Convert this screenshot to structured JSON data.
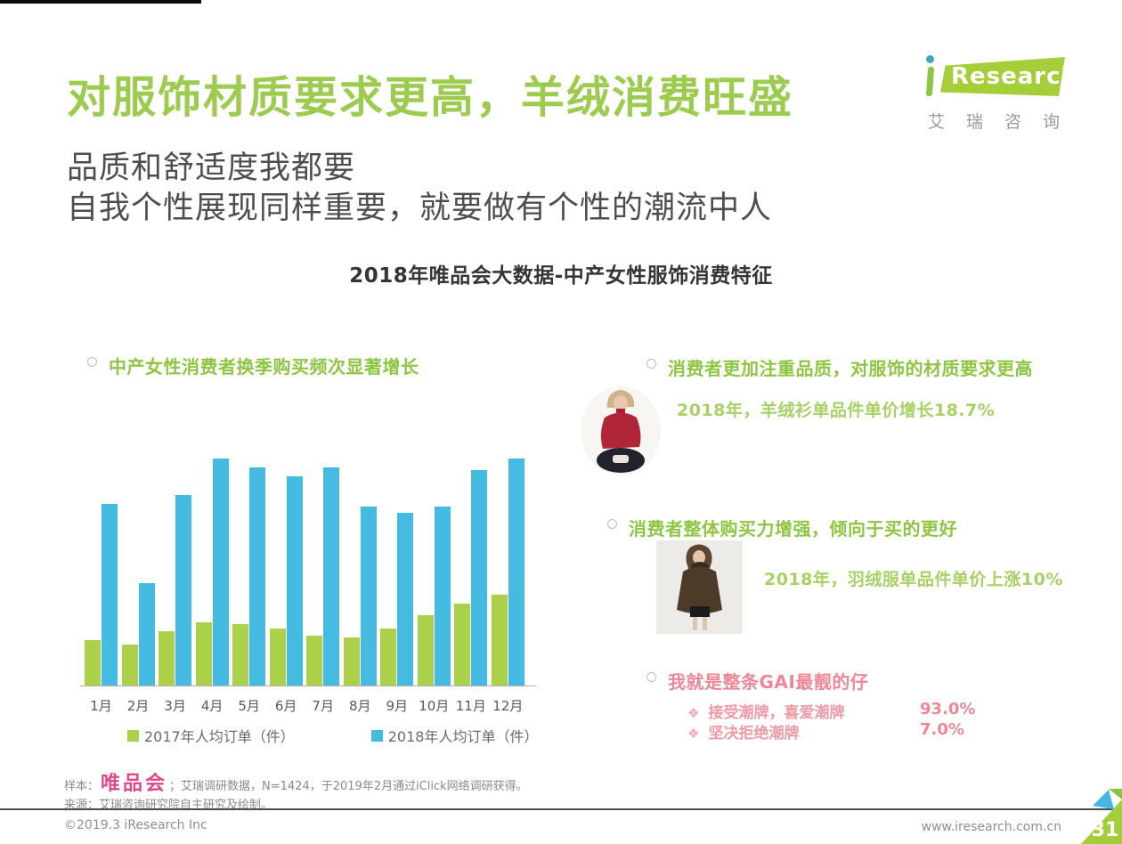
{
  "header": {
    "title": "对服饰材质要求更高，羊绒消费旺盛",
    "subtitle_line1": "品质和舒适度我都要",
    "subtitle_line2": "自我个性展现同样重要，就要做有个性的潮流中人"
  },
  "logo": {
    "monogram": "i",
    "wordmark": "Research",
    "caption": "艾瑞咨询"
  },
  "section_title": "2018年唯品会大数据-中产女性服饰消费特征",
  "chart_data": {
    "type": "bar",
    "title": "中产女性消费者换季购买频次显著增长",
    "categories": [
      "1月",
      "2月",
      "3月",
      "4月",
      "5月",
      "6月",
      "7月",
      "8月",
      "9月",
      "10月",
      "11月",
      "12月"
    ],
    "series": [
      {
        "name": "2017年人均订单（件）",
        "color": "#abd04a",
        "values": [
          20,
          18,
          24,
          28,
          27,
          25,
          22,
          21,
          25,
          31,
          36,
          40
        ]
      },
      {
        "name": "2018年人均订单（件）",
        "color": "#45bbe2",
        "values": [
          80,
          45,
          84,
          100,
          96,
          92,
          96,
          79,
          76,
          79,
          95,
          100
        ]
      }
    ],
    "xlabel": "",
    "ylabel": "",
    "ylim": [
      0,
      100
    ],
    "units": "relative bar height (no numeric axis shown)",
    "grid": false,
    "legend_position": "bottom"
  },
  "insights": {
    "quality": {
      "heading": "消费者更加注重品质，对服饰的材质要求更高",
      "detail": "2018年，羊绒衫单品件单价增长18.7%",
      "image": "woman-in-red-cashmere-sweater"
    },
    "spending": {
      "heading": "消费者整体购买力增强，倾向于买的更好",
      "detail": "2018年，羽绒服单品件单价上涨10%",
      "image": "woman-in-down-fur-coat"
    },
    "trend": {
      "heading": "我就是整条GAI最靓的仔",
      "bullet_char": "❖",
      "items": [
        {
          "label": "接受潮牌，喜爱潮牌",
          "value": "93.0%"
        },
        {
          "label": "坚决拒绝潮牌",
          "value": "7.0%"
        }
      ]
    }
  },
  "footer": {
    "sample_prefix": "样本：",
    "sample_brand": "唯品会",
    "sample_text": "；艾瑞调研数据，N=1424，于2019年2月通过iClick网络调研获得。",
    "source_text": "来源：艾瑞咨询研究院自主研究及绘制。"
  },
  "bottom_bar": {
    "copyright": "©2019.3 iResearch Inc",
    "website": "www.iresearch.com.cn",
    "page_number": "31"
  },
  "colors": {
    "title_green": "#9dcb50",
    "bullet_green": "#8ec643",
    "detail_green": "#a8d165",
    "bar_green": "#abd04a",
    "bar_blue": "#45bbe2",
    "pink": "#ee8796",
    "brand_pink": "#e0488e"
  }
}
